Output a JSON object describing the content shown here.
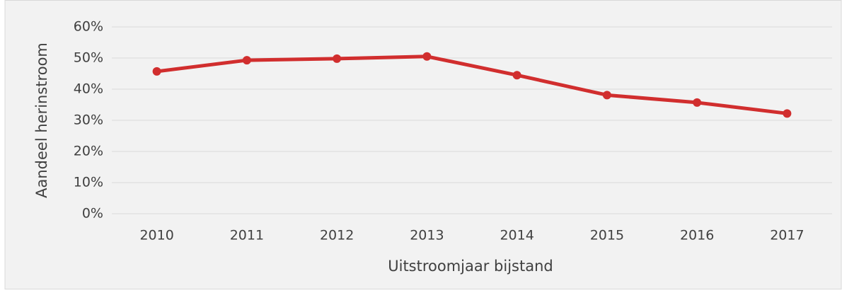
{
  "chart_data": {
    "type": "line",
    "x_label": "Uitstroomjaar bijstand",
    "y_label": "Aandeel herinstroom",
    "categories": [
      "2010",
      "2011",
      "2012",
      "2013",
      "2014",
      "2015",
      "2016",
      "2017"
    ],
    "series": [
      {
        "color": "#d12e2e",
        "values": [
          45.7,
          49.3,
          49.8,
          50.5,
          44.5,
          38.1,
          35.7,
          32.2
        ]
      }
    ],
    "ylim": [
      0,
      60
    ],
    "yticks": [
      {
        "value": 0,
        "label": "0%"
      },
      {
        "value": 10,
        "label": "10%"
      },
      {
        "value": 20,
        "label": "20%"
      },
      {
        "value": 30,
        "label": "30%"
      },
      {
        "value": 40,
        "label": "40%"
      },
      {
        "value": 50,
        "label": "50%"
      },
      {
        "value": 60,
        "label": "60%"
      }
    ],
    "grid": true
  }
}
